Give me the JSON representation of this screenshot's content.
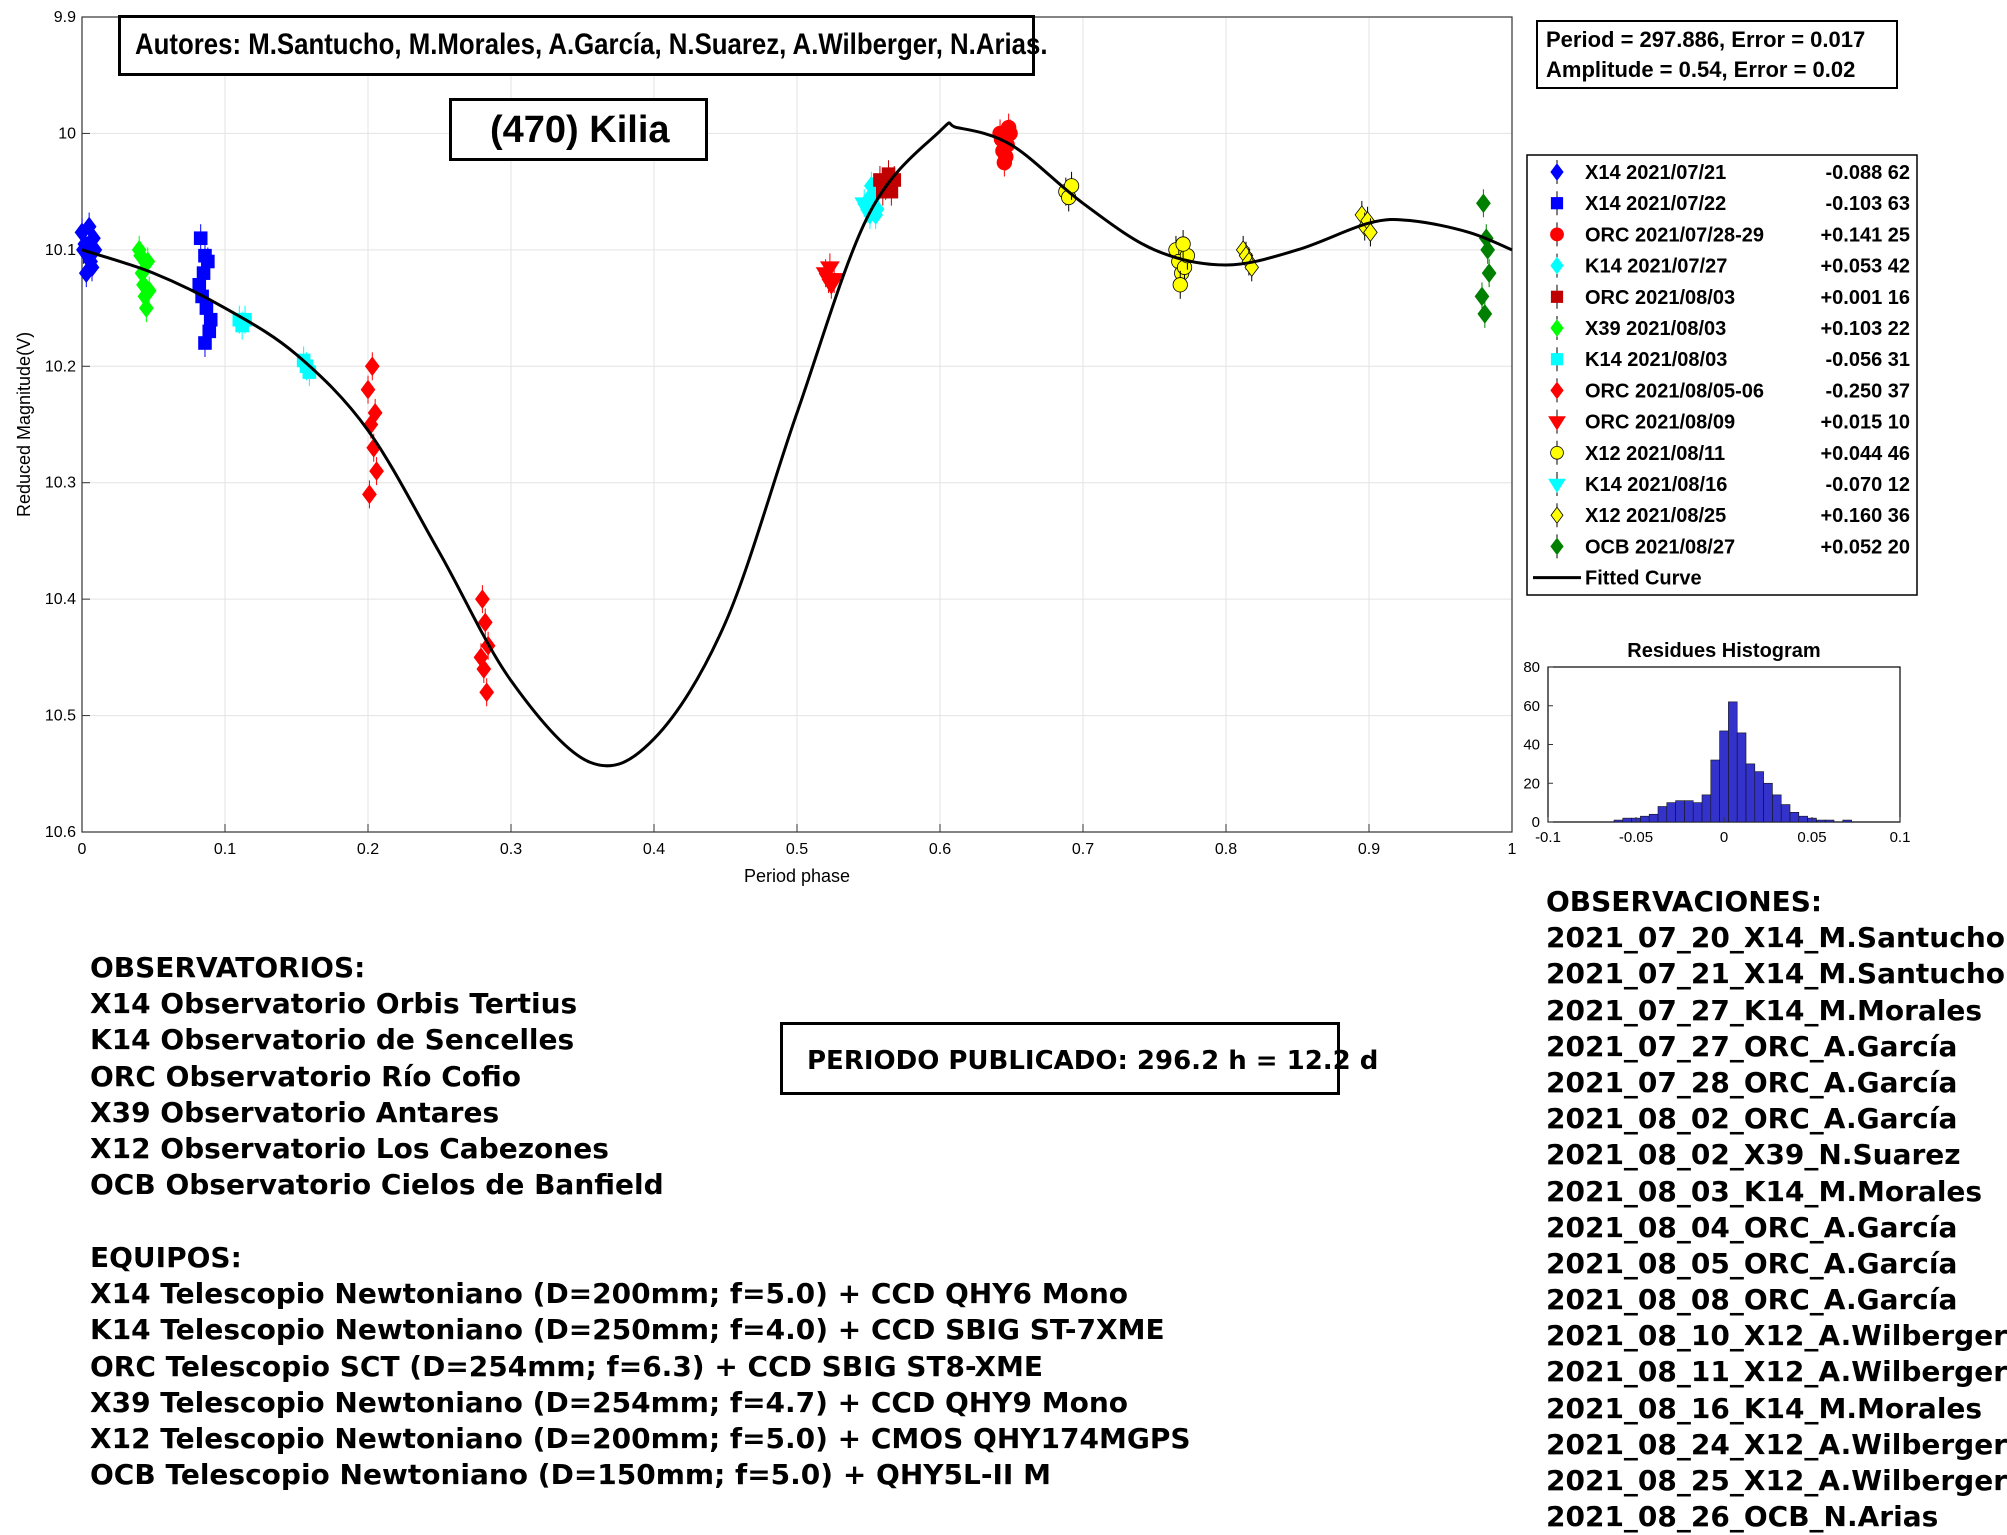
{
  "authors": "Autores: M.Santucho, M.Morales, A.García, N.Suarez, A.Wilberger, N.Arias.",
  "object_title": "(470) Kilia",
  "fit_stats": {
    "line1": "Period =  297.886, Error = 0.017",
    "line2": "Amplitude = 0.54, Error = 0.02"
  },
  "published_period": "PERIODO PUBLICADO: 296.2 h = 12.2 d",
  "observatorios": {
    "heading": "OBSERVATORIOS:",
    "items": [
      "X14 Observatorio Orbis Tertius",
      "K14 Observatorio de Sencelles",
      "ORC Observatorio Río Cofio",
      "X39 Observatorio Antares",
      "X12 Observatorio Los Cabezones",
      "OCB Observatorio Cielos de Banfield"
    ]
  },
  "equipos": {
    "heading": "EQUIPOS:",
    "items": [
      "X14 Telescopio Newtoniano (D=200mm; f=5.0) + CCD QHY6 Mono",
      "K14 Telescopio Newtoniano (D=250mm; f=4.0) + CCD SBIG ST-7XME",
      "ORC Telescopio SCT (D=254mm; f=6.3) + CCD SBIG ST8-XME",
      "X39 Telescopio Newtoniano (D=254mm; f=4.7) + CCD QHY9 Mono",
      "X12 Telescopio Newtoniano (D=200mm; f=5.0) + CMOS QHY174MGPS",
      "OCB Telescopio Newtoniano (D=150mm; f=5.0) + QHY5L-II M"
    ]
  },
  "observaciones": {
    "heading": "OBSERVACIONES:",
    "items": [
      "2021_07_20_X14_M.Santucho",
      "2021_07_21_X14_M.Santucho",
      "2021_07_27_K14_M.Morales",
      "2021_07_27_ORC_A.García",
      "2021_07_28_ORC_A.García",
      "2021_08_02_ORC_A.García",
      "2021_08_02_X39_N.Suarez",
      "2021_08_03_K14_M.Morales",
      "2021_08_04_ORC_A.García",
      "2021_08_05_ORC_A.García",
      "2021_08_08_ORC_A.García",
      "2021_08_10_X12_A.Wilberger",
      "2021_08_11_X12_A.Wilberger",
      "2021_08_16_K14_M.Morales",
      "2021_08_24_X12_A.Wilberger",
      "2021_08_25_X12_A.Wilberger",
      "2021_08_26_OCB_N.Arias"
    ]
  },
  "chart_data": [
    {
      "type": "scatter",
      "xlabel": "Period phase",
      "ylabel": "Reduced Magnitude(V)",
      "xlim": [
        0,
        1
      ],
      "ylim": [
        9.9,
        10.6
      ],
      "y_reversed": true,
      "grid": true,
      "x_ticks": [
        0,
        0.1,
        0.2,
        0.3,
        0.4,
        0.5,
        0.6,
        0.7,
        0.8,
        0.9,
        1
      ],
      "y_ticks": [
        9.9,
        10,
        10.1,
        10.2,
        10.3,
        10.4,
        10.5,
        10.6
      ],
      "legend_position": "right",
      "series": [
        {
          "name": "X14 2021/07/21",
          "offset": "-0.088",
          "count": "62",
          "color": "#0000ff",
          "marker": "diamond",
          "points": [
            [
              0.0,
              10.085
            ],
            [
              0.002,
              10.095
            ],
            [
              0.004,
              10.105
            ],
            [
              0.006,
              10.11
            ],
            [
              0.008,
              10.09
            ],
            [
              0.003,
              10.12
            ],
            [
              0.005,
              10.08
            ],
            [
              0.007,
              10.115
            ],
            [
              0.001,
              10.1
            ],
            [
              0.009,
              10.1
            ]
          ]
        },
        {
          "name": "X14 2021/07/22",
          "offset": "-0.103",
          "count": "63",
          "color": "#0000ff",
          "marker": "square",
          "points": [
            [
              0.083,
              10.09
            ],
            [
              0.085,
              10.12
            ],
            [
              0.087,
              10.15
            ],
            [
              0.089,
              10.17
            ],
            [
              0.084,
              10.14
            ],
            [
              0.086,
              10.18
            ],
            [
              0.088,
              10.11
            ],
            [
              0.09,
              10.16
            ],
            [
              0.082,
              10.13
            ],
            [
              0.086,
              10.105
            ]
          ]
        },
        {
          "name": "ORC 2021/07/28-29",
          "offset": "+0.141",
          "count": "25",
          "color": "#ff0000",
          "marker": "circle",
          "points": [
            [
              0.642,
              10.0
            ],
            [
              0.644,
              10.015
            ],
            [
              0.646,
              10.02
            ],
            [
              0.648,
              9.995
            ],
            [
              0.643,
              10.005
            ],
            [
              0.647,
              10.01
            ],
            [
              0.645,
              10.025
            ],
            [
              0.649,
              10.0
            ]
          ]
        },
        {
          "name": "K14 2021/07/27",
          "offset": "+0.053",
          "count": "42",
          "color": "#00ffff",
          "marker": "diamond",
          "points": [
            [
              0.551,
              10.055
            ],
            [
              0.553,
              10.06
            ],
            [
              0.555,
              10.07
            ],
            [
              0.557,
              10.05
            ],
            [
              0.552,
              10.045
            ],
            [
              0.556,
              10.065
            ]
          ]
        },
        {
          "name": "ORC 2021/08/03",
          "offset": "+0.001",
          "count": "16",
          "color": "#c00000",
          "marker": "square",
          "points": [
            [
              0.558,
              10.04
            ],
            [
              0.56,
              10.05
            ],
            [
              0.562,
              10.045
            ],
            [
              0.564,
              10.035
            ],
            [
              0.566,
              10.05
            ],
            [
              0.568,
              10.04
            ]
          ]
        },
        {
          "name": "X39 2021/08/03",
          "offset": "+0.103",
          "count": "22",
          "color": "#00ff00",
          "marker": "diamond",
          "points": [
            [
              0.04,
              10.1
            ],
            [
              0.042,
              10.12
            ],
            [
              0.044,
              10.14
            ],
            [
              0.046,
              10.11
            ],
            [
              0.043,
              10.13
            ],
            [
              0.045,
              10.15
            ],
            [
              0.041,
              10.105
            ],
            [
              0.047,
              10.135
            ]
          ]
        },
        {
          "name": "K14 2021/08/03",
          "offset": "-0.056",
          "count": "31",
          "color": "#00ffff",
          "marker": "square",
          "points": [
            [
              0.11,
              10.16
            ],
            [
              0.112,
              10.165
            ],
            [
              0.114,
              10.16
            ],
            [
              0.155,
              10.195
            ],
            [
              0.157,
              10.2
            ],
            [
              0.159,
              10.205
            ]
          ]
        },
        {
          "name": "ORC 2021/08/05-06",
          "offset": "-0.250",
          "count": "37",
          "color": "#ff0000",
          "marker": "diamond",
          "points": [
            [
              0.2,
              10.22
            ],
            [
              0.202,
              10.25
            ],
            [
              0.204,
              10.27
            ],
            [
              0.206,
              10.29
            ],
            [
              0.201,
              10.31
            ],
            [
              0.203,
              10.2
            ],
            [
              0.205,
              10.24
            ],
            [
              0.28,
              10.4
            ],
            [
              0.282,
              10.42
            ],
            [
              0.284,
              10.44
            ],
            [
              0.281,
              10.46
            ],
            [
              0.283,
              10.48
            ],
            [
              0.279,
              10.45
            ]
          ]
        },
        {
          "name": "ORC 2021/08/09",
          "offset": "+0.015",
          "count": "10",
          "color": "#ff0000",
          "marker": "triangle-down",
          "points": [
            [
              0.52,
              10.12
            ],
            [
              0.522,
              10.125
            ],
            [
              0.524,
              10.13
            ],
            [
              0.526,
              10.125
            ],
            [
              0.523,
              10.115
            ]
          ]
        },
        {
          "name": "X12 2021/08/11",
          "offset": "+0.044",
          "count": "46",
          "color": "#ffff00",
          "marker": "circle",
          "points": [
            [
              0.765,
              10.1
            ],
            [
              0.767,
              10.11
            ],
            [
              0.769,
              10.12
            ],
            [
              0.771,
              10.115
            ],
            [
              0.773,
              10.105
            ],
            [
              0.768,
              10.13
            ],
            [
              0.77,
              10.095
            ],
            [
              0.688,
              10.05
            ],
            [
              0.69,
              10.055
            ],
            [
              0.692,
              10.045
            ]
          ]
        },
        {
          "name": "K14 2021/08/16",
          "offset": "-0.070",
          "count": "12",
          "color": "#00ffff",
          "marker": "triangle-down",
          "points": [
            [
              0.547,
              10.06
            ],
            [
              0.549,
              10.065
            ],
            [
              0.551,
              10.07
            ]
          ]
        },
        {
          "name": "X12 2021/08/25",
          "offset": "+0.160",
          "count": "36",
          "color": "#ffff00",
          "marker": "diamond",
          "points": [
            [
              0.812,
              10.1
            ],
            [
              0.814,
              10.105
            ],
            [
              0.816,
              10.11
            ],
            [
              0.818,
              10.115
            ],
            [
              0.895,
              10.07
            ],
            [
              0.897,
              10.08
            ],
            [
              0.899,
              10.075
            ],
            [
              0.901,
              10.085
            ]
          ]
        },
        {
          "name": "OCB 2021/08/27",
          "offset": "+0.052",
          "count": "20",
          "color": "#008000",
          "marker": "diamond",
          "points": [
            [
              0.98,
              10.06
            ],
            [
              0.982,
              10.09
            ],
            [
              0.984,
              10.12
            ],
            [
              0.979,
              10.14
            ],
            [
              0.981,
              10.155
            ],
            [
              0.983,
              10.1
            ]
          ]
        }
      ],
      "fitted_curve": {
        "name": "Fitted Curve",
        "color": "#000000",
        "points": [
          [
            0,
            10.1
          ],
          [
            0.05,
            10.12
          ],
          [
            0.1,
            10.15
          ],
          [
            0.15,
            10.19
          ],
          [
            0.2,
            10.255
          ],
          [
            0.25,
            10.36
          ],
          [
            0.3,
            10.47
          ],
          [
            0.355,
            10.54
          ],
          [
            0.4,
            10.52
          ],
          [
            0.45,
            10.42
          ],
          [
            0.5,
            10.24
          ],
          [
            0.55,
            10.07
          ],
          [
            0.6,
            9.998
          ],
          [
            0.612,
            9.995
          ],
          [
            0.65,
            10.01
          ],
          [
            0.7,
            10.06
          ],
          [
            0.75,
            10.1
          ],
          [
            0.8,
            10.113
          ],
          [
            0.85,
            10.1
          ],
          [
            0.9,
            10.077
          ],
          [
            0.93,
            10.075
          ],
          [
            0.97,
            10.085
          ],
          [
            1.0,
            10.1
          ]
        ]
      }
    },
    {
      "type": "bar",
      "title": "Residues Histogram",
      "xlim": [
        -0.1,
        0.1
      ],
      "ylim": [
        0,
        80
      ],
      "x_ticks": [
        -0.1,
        -0.05,
        0,
        0.05,
        0.1
      ],
      "y_ticks": [
        0,
        20,
        40,
        60,
        80
      ],
      "bin_width": 0.005,
      "bins": [
        [
          -0.06,
          1
        ],
        [
          -0.055,
          2
        ],
        [
          -0.05,
          2
        ],
        [
          -0.045,
          3
        ],
        [
          -0.04,
          4
        ],
        [
          -0.035,
          8
        ],
        [
          -0.03,
          10
        ],
        [
          -0.025,
          11
        ],
        [
          -0.02,
          11
        ],
        [
          -0.015,
          10
        ],
        [
          -0.01,
          14
        ],
        [
          -0.005,
          32
        ],
        [
          0.0,
          47
        ],
        [
          0.005,
          62
        ],
        [
          0.01,
          46
        ],
        [
          0.015,
          30
        ],
        [
          0.02,
          26
        ],
        [
          0.025,
          20
        ],
        [
          0.03,
          14
        ],
        [
          0.035,
          9
        ],
        [
          0.04,
          5
        ],
        [
          0.045,
          3
        ],
        [
          0.05,
          2
        ],
        [
          0.055,
          1
        ],
        [
          0.06,
          1
        ],
        [
          0.07,
          1
        ]
      ],
      "color": "#3333cc"
    }
  ]
}
